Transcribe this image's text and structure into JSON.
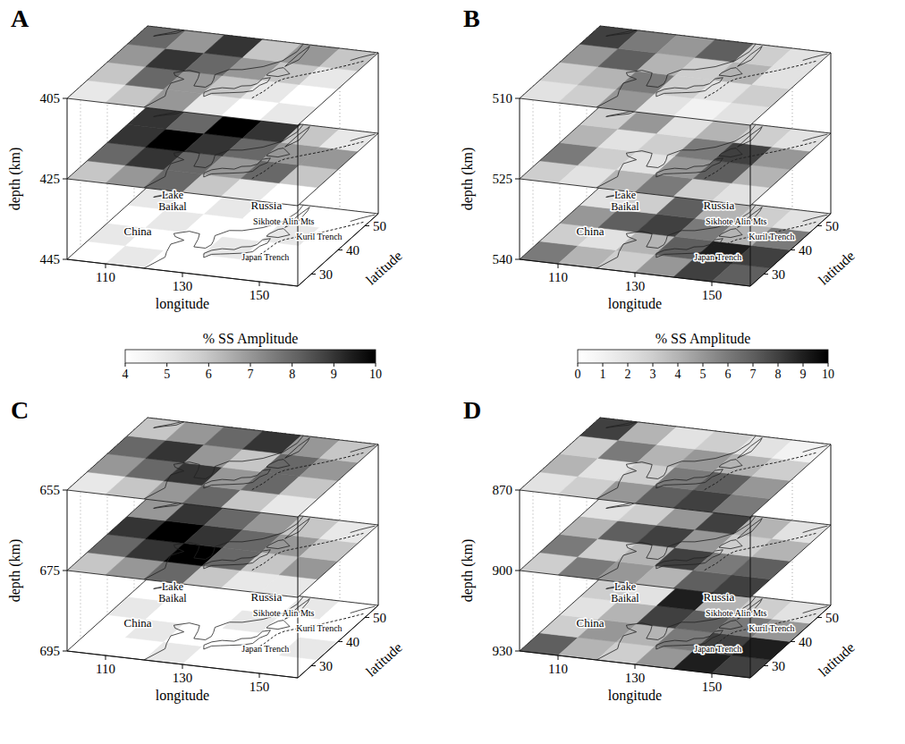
{
  "chart_data": [
    {
      "type": "heatmap",
      "title": "A",
      "x_label": "longitude",
      "y_label": "latitude",
      "z_label": "depth (km)",
      "xlim": [
        100,
        160
      ],
      "ylim": [
        25,
        55
      ],
      "zlim": [
        405,
        445
      ],
      "xticks": [
        110,
        130,
        150
      ],
      "yticks": [
        30,
        40,
        50
      ],
      "zticks": [
        405,
        425,
        445
      ],
      "x_edges": [
        100,
        110,
        120,
        130,
        140,
        150,
        160
      ],
      "y_edges": [
        25,
        32.5,
        40,
        47.5,
        55
      ],
      "slices": [
        {
          "depth": 405,
          "values": [
            [
              5,
              6,
              7,
              5,
              4,
              5
            ],
            [
              6,
              8,
              7,
              6,
              5,
              4
            ],
            [
              7,
              9,
              8,
              7,
              6,
              5
            ],
            [
              8,
              7,
              9,
              6,
              7,
              6
            ]
          ]
        },
        {
          "depth": 425,
          "values": [
            [
              6,
              7,
              8,
              6,
              5,
              4
            ],
            [
              8,
              9,
              8,
              7,
              8,
              6
            ],
            [
              9,
              10,
              9,
              8,
              7,
              7
            ],
            [
              9,
              8,
              10,
              9,
              6,
              5
            ]
          ]
        },
        {
          "depth": 445,
          "values": [
            [
              4,
              5,
              4,
              4,
              4,
              4
            ],
            [
              5,
              4,
              4,
              5,
              4,
              4
            ],
            [
              4,
              5,
              4,
              4,
              5,
              4
            ],
            [
              5,
              4,
              5,
              4,
              4,
              4
            ]
          ]
        }
      ],
      "colorbar": {
        "label": "% SS Amplitude",
        "range": [
          4,
          10
        ],
        "ticks": [
          4,
          5,
          6,
          7,
          8,
          9,
          10
        ]
      },
      "annotations": [
        {
          "text": "Lake Baikal",
          "x": 110,
          "y": 50
        },
        {
          "text": "Russia",
          "x": 133,
          "y": 52
        },
        {
          "text": "China",
          "x": 110,
          "y": 37
        },
        {
          "text": "Sikhote Alin Mts",
          "x": 141,
          "y": 47
        },
        {
          "text": "Kuril Trench",
          "x": 153,
          "y": 43
        },
        {
          "text": "Japan Trench",
          "x": 146,
          "y": 33
        }
      ]
    },
    {
      "type": "heatmap",
      "title": "B",
      "x_label": "longitude",
      "y_label": "latitude",
      "z_label": "depth (km)",
      "xlim": [
        100,
        160
      ],
      "ylim": [
        25,
        55
      ],
      "zlim": [
        510,
        540
      ],
      "xticks": [
        110,
        130,
        150
      ],
      "yticks": [
        30,
        40,
        50
      ],
      "zticks": [
        510,
        525,
        540
      ],
      "x_edges": [
        100,
        110,
        120,
        130,
        140,
        150,
        160
      ],
      "y_edges": [
        25,
        32.5,
        40,
        47.5,
        55
      ],
      "slices": [
        {
          "depth": 510,
          "values": [
            [
              2,
              3,
              5,
              2,
              1,
              2
            ],
            [
              3,
              4,
              6,
              3,
              2,
              3
            ],
            [
              5,
              7,
              4,
              3,
              4,
              2
            ],
            [
              8,
              6,
              5,
              7,
              3,
              2
            ]
          ]
        },
        {
          "depth": 525,
          "values": [
            [
              3,
              2,
              4,
              6,
              3,
              2
            ],
            [
              6,
              3,
              2,
              5,
              7,
              4
            ],
            [
              4,
              2,
              3,
              6,
              8,
              5
            ],
            [
              3,
              5,
              2,
              4,
              3,
              2
            ]
          ]
        },
        {
          "depth": 540,
          "values": [
            [
              6,
              4,
              3,
              5,
              8,
              7
            ],
            [
              3,
              2,
              4,
              7,
              9,
              8
            ],
            [
              5,
              7,
              8,
              6,
              4,
              6
            ],
            [
              2,
              3,
              7,
              4,
              3,
              2
            ]
          ]
        }
      ],
      "colorbar": {
        "label": "% SS Amplitude",
        "range": [
          0,
          10
        ],
        "ticks": [
          0,
          1,
          2,
          3,
          4,
          5,
          6,
          7,
          8,
          9,
          10
        ]
      },
      "annotations": [
        {
          "text": "Lake Baikal",
          "x": 110,
          "y": 50
        },
        {
          "text": "Russia",
          "x": 133,
          "y": 52
        },
        {
          "text": "China",
          "x": 110,
          "y": 37
        },
        {
          "text": "Sikhote Alin Mts",
          "x": 141,
          "y": 47
        },
        {
          "text": "Kuril Trench",
          "x": 153,
          "y": 43
        },
        {
          "text": "Japan Trench",
          "x": 146,
          "y": 33
        }
      ]
    },
    {
      "type": "heatmap",
      "title": "C",
      "x_label": "longitude",
      "y_label": "latitude",
      "z_label": "depth (km)",
      "xlim": [
        100,
        160
      ],
      "ylim": [
        25,
        55
      ],
      "zlim": [
        655,
        695
      ],
      "xticks": [
        110,
        130,
        150
      ],
      "yticks": [
        30,
        40,
        50
      ],
      "zticks": [
        655,
        675,
        695
      ],
      "x_edges": [
        100,
        110,
        120,
        130,
        140,
        150,
        160
      ],
      "y_edges": [
        25,
        32.5,
        40,
        47.5,
        55
      ],
      "slices": [
        {
          "depth": 655,
          "values": [
            [
              5,
              6,
              7,
              8,
              6,
              5
            ],
            [
              7,
              8,
              9,
              7,
              8,
              6
            ],
            [
              8,
              9,
              7,
              6,
              8,
              7
            ],
            [
              6,
              7,
              8,
              9,
              7,
              6
            ]
          ]
        },
        {
          "depth": 675,
          "values": [
            [
              6,
              7,
              8,
              6,
              5,
              5
            ],
            [
              8,
              9,
              10,
              8,
              6,
              7
            ],
            [
              9,
              10,
              9,
              8,
              7,
              6
            ],
            [
              7,
              9,
              8,
              7,
              6,
              5
            ]
          ]
        },
        {
          "depth": 695,
          "values": [
            [
              4,
              4,
              5,
              4,
              4,
              4
            ],
            [
              4,
              5,
              4,
              4,
              4,
              5
            ],
            [
              5,
              4,
              4,
              5,
              4,
              4
            ],
            [
              4,
              4,
              4,
              4,
              5,
              4
            ]
          ]
        }
      ],
      "annotations": [
        {
          "text": "Lake Baikal",
          "x": 110,
          "y": 50
        },
        {
          "text": "Russia",
          "x": 133,
          "y": 52
        },
        {
          "text": "China",
          "x": 110,
          "y": 37
        },
        {
          "text": "Sikhote Alin Mts",
          "x": 141,
          "y": 47
        },
        {
          "text": "Kuril Trench",
          "x": 153,
          "y": 43
        },
        {
          "text": "Japan Trench",
          "x": 146,
          "y": 33
        }
      ]
    },
    {
      "type": "heatmap",
      "title": "D",
      "x_label": "longitude",
      "y_label": "latitude",
      "z_label": "depth (km)",
      "xlim": [
        100,
        160
      ],
      "ylim": [
        25,
        55
      ],
      "zlim": [
        870,
        930
      ],
      "xticks": [
        110,
        130,
        150
      ],
      "yticks": [
        30,
        40,
        50
      ],
      "zticks": [
        870,
        900,
        930
      ],
      "x_edges": [
        100,
        110,
        120,
        130,
        140,
        150,
        160
      ],
      "y_edges": [
        25,
        32.5,
        40,
        47.5,
        55
      ],
      "slices": [
        {
          "depth": 870,
          "values": [
            [
              2,
              3,
              5,
              7,
              8,
              6
            ],
            [
              4,
              2,
              3,
              6,
              7,
              5
            ],
            [
              3,
              6,
              4,
              5,
              4,
              3
            ],
            [
              8,
              4,
              2,
              3,
              2,
              1
            ]
          ]
        },
        {
          "depth": 900,
          "values": [
            [
              3,
              6,
              5,
              4,
              7,
              8
            ],
            [
              6,
              3,
              4,
              8,
              6,
              7
            ],
            [
              4,
              7,
              8,
              5,
              3,
              4
            ],
            [
              2,
              3,
              5,
              8,
              4,
              2
            ]
          ]
        },
        {
          "depth": 930,
          "values": [
            [
              7,
              4,
              3,
              5,
              9,
              8
            ],
            [
              3,
              5,
              4,
              6,
              8,
              9
            ],
            [
              2,
              4,
              8,
              7,
              6,
              5
            ],
            [
              3,
              2,
              9,
              4,
              3,
              2
            ]
          ]
        }
      ],
      "annotations": [
        {
          "text": "Lake Baikal",
          "x": 110,
          "y": 50
        },
        {
          "text": "Russia",
          "x": 133,
          "y": 52
        },
        {
          "text": "China",
          "x": 110,
          "y": 37
        },
        {
          "text": "Sikhote Alin Mts",
          "x": 141,
          "y": 47
        },
        {
          "text": "Kuril Trench",
          "x": 153,
          "y": 43
        },
        {
          "text": "Japan Trench",
          "x": 146,
          "y": 33
        }
      ]
    }
  ]
}
